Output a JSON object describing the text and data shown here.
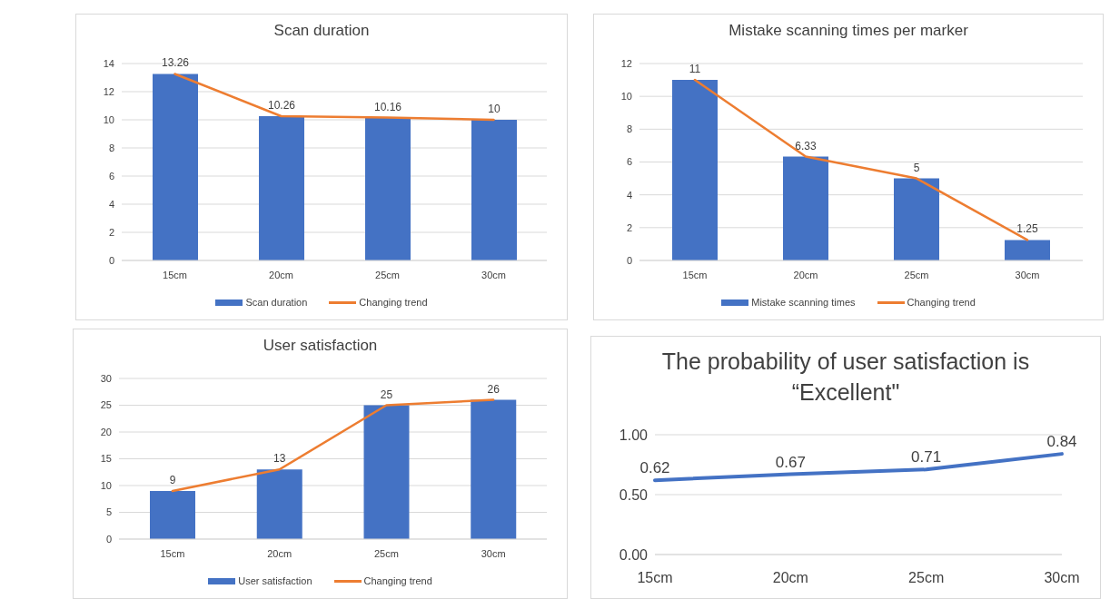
{
  "chart_data": [
    {
      "type": "bar",
      "title": "Scan duration",
      "categories": [
        "15cm",
        "20cm",
        "25cm",
        "30cm"
      ],
      "series": [
        {
          "name": "Scan duration",
          "color": "#4472c4",
          "values": [
            13.26,
            10.26,
            10.16,
            10
          ],
          "value_labels": [
            "13.26",
            "10.26",
            "10.16",
            "10"
          ]
        },
        {
          "name": "Changing trend",
          "type": "line",
          "color": "#ed7d31",
          "values": [
            13.26,
            10.26,
            10.16,
            10
          ]
        }
      ],
      "ylim": [
        0,
        14
      ],
      "yticks": [
        0,
        2,
        4,
        6,
        8,
        10,
        12,
        14
      ],
      "grid": "y",
      "legend": "bottom"
    },
    {
      "type": "bar",
      "title": "Mistake scanning times per marker",
      "categories": [
        "15cm",
        "20cm",
        "25cm",
        "30cm"
      ],
      "series": [
        {
          "name": "Mistake scanning times",
          "color": "#4472c4",
          "values": [
            11,
            6.33,
            5,
            1.25
          ],
          "value_labels": [
            "11",
            "6.33",
            "5",
            "1.25"
          ]
        },
        {
          "name": "Changing trend",
          "type": "line",
          "color": "#ed7d31",
          "values": [
            11,
            6.33,
            5,
            1.25
          ]
        }
      ],
      "ylim": [
        0,
        12
      ],
      "yticks": [
        0,
        2,
        4,
        6,
        8,
        10,
        12
      ],
      "grid": "y",
      "legend": "bottom"
    },
    {
      "type": "bar",
      "title": "User satisfaction",
      "categories": [
        "15cm",
        "20cm",
        "25cm",
        "30cm"
      ],
      "series": [
        {
          "name": "User satisfaction",
          "color": "#4472c4",
          "values": [
            9,
            13,
            25,
            26
          ],
          "value_labels": [
            "9",
            "13",
            "25",
            "26"
          ]
        },
        {
          "name": "Changing trend",
          "type": "line",
          "color": "#ed7d31",
          "values": [
            9,
            13,
            25,
            26
          ]
        }
      ],
      "ylim": [
        0,
        30
      ],
      "yticks": [
        0,
        5,
        10,
        15,
        20,
        25,
        30
      ],
      "grid": "y",
      "legend": "bottom"
    },
    {
      "type": "line",
      "title": "The probability of user satisfaction is “Excellent\"",
      "categories": [
        "15cm",
        "20cm",
        "25cm",
        "30cm"
      ],
      "series": [
        {
          "color": "#4472c4",
          "values": [
            0.62,
            0.67,
            0.71,
            0.84
          ],
          "value_labels": [
            "0.62",
            "0.67",
            "0.71",
            "0.84"
          ]
        }
      ],
      "ylim": [
        0,
        1
      ],
      "yticks": [
        {
          "value": 0,
          "label": "0.00"
        },
        {
          "value": 0.5,
          "label": "0.50"
        },
        {
          "value": 1,
          "label": "1.00"
        }
      ],
      "grid": "y"
    }
  ]
}
